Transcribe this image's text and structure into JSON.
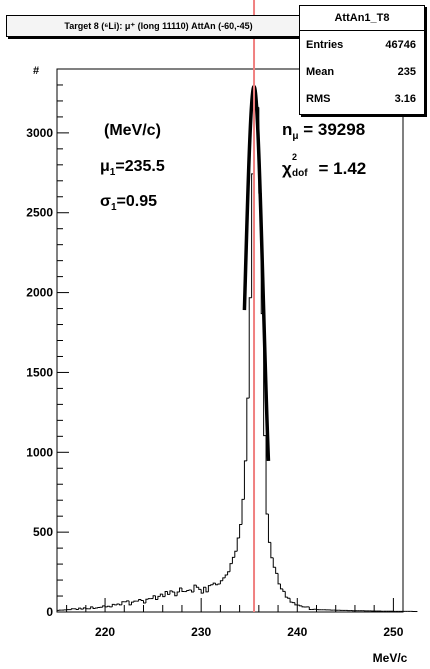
{
  "chart_data": {
    "type": "histogram",
    "title": "Target 8 (⁶Li): μ⁺ (long 11110) AttAn (-60,-45)",
    "xlabel": "MeV/c",
    "ylabel": "#",
    "xlim": [
      215,
      251
    ],
    "ylim": [
      0,
      3400
    ],
    "x_ticks": [
      220,
      230,
      240,
      250
    ],
    "y_ticks": [
      0,
      500,
      1000,
      1500,
      2000,
      2500,
      3000
    ],
    "bin_width": 0.25,
    "x_start": 215.0,
    "values": [
      10,
      12,
      12,
      13,
      15,
      15,
      20,
      20,
      16,
      24,
      18,
      26,
      20,
      20,
      32,
      22,
      25,
      28,
      30,
      38,
      32,
      36,
      32,
      48,
      45,
      50,
      45,
      64,
      64,
      70,
      45,
      62,
      68,
      68,
      78,
      72,
      56,
      80,
      84,
      84,
      102,
      78,
      98,
      112,
      96,
      128,
      110,
      132,
      125,
      102,
      125,
      150,
      128,
      128,
      135,
      138,
      125,
      168,
      155,
      142,
      118,
      155,
      126,
      165,
      171,
      181,
      171,
      175,
      196,
      214,
      232,
      252,
      303,
      342,
      380,
      463,
      548,
      705,
      946,
      1339,
      1968,
      2743,
      3265,
      3160,
      2623,
      1868,
      1104,
      614,
      436,
      340,
      280,
      242,
      176,
      145,
      129,
      93,
      86,
      62,
      59,
      45,
      43,
      38,
      32,
      31,
      32,
      16,
      16,
      17,
      15,
      14,
      14,
      14,
      13,
      13,
      12,
      12,
      11,
      11,
      10,
      10,
      10,
      9,
      9,
      8,
      8,
      8,
      8,
      8,
      7,
      7,
      7,
      6,
      6,
      6,
      6,
      5,
      5,
      5,
      5,
      5,
      4,
      4,
      4,
      4,
      4,
      4,
      4,
      4,
      3,
      3
    ],
    "peak_line_x": 235.5,
    "peak_line_color": "#f08080",
    "fit_line_color": "#000000",
    "fit_range": [
      234.5,
      237.0
    ],
    "fit_mu": 235.5,
    "fit_sigma": 0.95,
    "fit_amplitude": 3290,
    "grid": false,
    "stats": {
      "name": "AttAn1_T8",
      "entries_label": "Entries",
      "entries": "46746",
      "mean_label": "Mean",
      "mean": "235",
      "rms_label": "RMS",
      "rms": "3.16"
    },
    "annotations": {
      "units": "(MeV/c)",
      "mu_symbol": "μ",
      "mu_sub": "1",
      "mu_value": "=235.5",
      "sigma_symbol": "σ",
      "sigma_sub": "1",
      "sigma_value": "=0.95",
      "n_symbol": "n",
      "n_sub": "μ",
      "n_value": " = 39298",
      "chi_symbol": "χ",
      "chi_sup": "2",
      "chi_sub": "dof",
      "chi_value": " = 1.42"
    }
  }
}
